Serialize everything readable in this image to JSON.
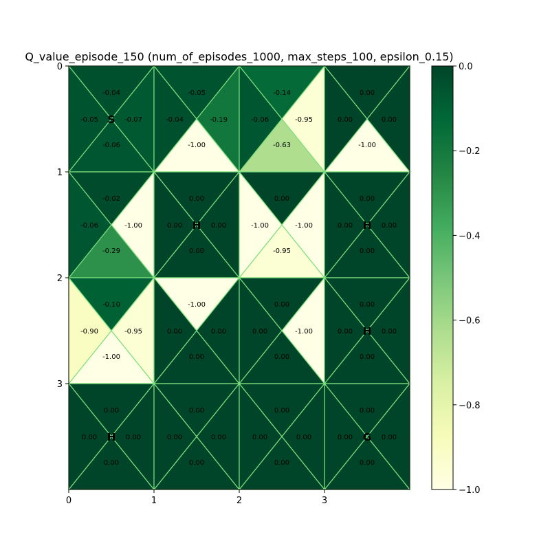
{
  "chart_data": {
    "type": "heatmap",
    "title": "Q_value_episode_150 (num_of_episodes_1000, max_steps_100, epsilon_0.15)",
    "xticks": [
      "0",
      "1",
      "2",
      "3"
    ],
    "yticks": [
      "0",
      "1",
      "2",
      "3"
    ],
    "xlim": [
      0,
      4
    ],
    "ylim": [
      4,
      0
    ],
    "colormap": "YlGn",
    "colorbar": {
      "vmin": -1.0,
      "vmax": 0.0,
      "ticks": [
        "0.0",
        "−0.2",
        "−0.4",
        "−0.6",
        "−0.8",
        "−1.0"
      ],
      "tick_values": [
        0.0,
        -0.2,
        -0.4,
        -0.6,
        -0.8,
        -1.0
      ]
    },
    "grid_line_color": "#7de07d",
    "cells": [
      {
        "row": 0,
        "col": 0,
        "marker": "S",
        "up": "-0.04",
        "left": "-0.05",
        "right": "-0.07",
        "down": "-0.06",
        "up_v": -0.04,
        "left_v": -0.05,
        "right_v": -0.07,
        "down_v": -0.06
      },
      {
        "row": 0,
        "col": 1,
        "marker": "",
        "up": "-0.05",
        "left": "-0.04",
        "right": "-0.19",
        "down": "-1.00",
        "up_v": -0.05,
        "left_v": -0.04,
        "right_v": -0.19,
        "down_v": -1.0
      },
      {
        "row": 0,
        "col": 2,
        "marker": "",
        "up": "-0.14",
        "left": "-0.06",
        "right": "-0.95",
        "down": "-0.63",
        "up_v": -0.14,
        "left_v": -0.06,
        "right_v": -0.95,
        "down_v": -0.63
      },
      {
        "row": 0,
        "col": 3,
        "marker": "",
        "up": "0.00",
        "left": "0.00",
        "right": "0.00",
        "down": "-1.00",
        "up_v": 0.0,
        "left_v": 0.0,
        "right_v": 0.0,
        "down_v": -1.0
      },
      {
        "row": 1,
        "col": 0,
        "marker": "",
        "up": "-0.02",
        "left": "-0.06",
        "right": "-1.00",
        "down": "-0.29",
        "up_v": -0.02,
        "left_v": -0.06,
        "right_v": -1.0,
        "down_v": -0.29
      },
      {
        "row": 1,
        "col": 1,
        "marker": "H",
        "up": "0.00",
        "left": "0.00",
        "right": "0.00",
        "down": "0.00",
        "up_v": 0.0,
        "left_v": 0.0,
        "right_v": 0.0,
        "down_v": 0.0
      },
      {
        "row": 1,
        "col": 2,
        "marker": "",
        "up": "0.00",
        "left": "-1.00",
        "right": "-1.00",
        "down": "-0.95",
        "up_v": 0.0,
        "left_v": -1.0,
        "right_v": -1.0,
        "down_v": -0.95
      },
      {
        "row": 1,
        "col": 3,
        "marker": "H",
        "up": "0.00",
        "left": "0.00",
        "right": "0.00",
        "down": "0.00",
        "up_v": 0.0,
        "left_v": 0.0,
        "right_v": 0.0,
        "down_v": 0.0
      },
      {
        "row": 2,
        "col": 0,
        "marker": "",
        "up": "-0.10",
        "left": "-0.90",
        "right": "-0.95",
        "down": "-1.00",
        "up_v": -0.1,
        "left_v": -0.9,
        "right_v": -0.95,
        "down_v": -1.0
      },
      {
        "row": 2,
        "col": 1,
        "marker": "",
        "up": "-1.00",
        "left": "0.00",
        "right": "0.00",
        "down": "0.00",
        "up_v": -1.0,
        "left_v": 0.0,
        "right_v": 0.0,
        "down_v": 0.0
      },
      {
        "row": 2,
        "col": 2,
        "marker": "",
        "up": "0.00",
        "left": "0.00",
        "right": "-1.00",
        "down": "0.00",
        "up_v": 0.0,
        "left_v": 0.0,
        "right_v": -1.0,
        "down_v": 0.0
      },
      {
        "row": 2,
        "col": 3,
        "marker": "H",
        "up": "0.00",
        "left": "0.00",
        "right": "0.00",
        "down": "0.00",
        "up_v": 0.0,
        "left_v": 0.0,
        "right_v": 0.0,
        "down_v": 0.0
      },
      {
        "row": 3,
        "col": 0,
        "marker": "H",
        "up": "0.00",
        "left": "0.00",
        "right": "0.00",
        "down": "0.00",
        "up_v": 0.0,
        "left_v": 0.0,
        "right_v": 0.0,
        "down_v": 0.0
      },
      {
        "row": 3,
        "col": 1,
        "marker": "",
        "up": "0.00",
        "left": "0.00",
        "right": "0.00",
        "down": "0.00",
        "up_v": 0.0,
        "left_v": 0.0,
        "right_v": 0.0,
        "down_v": 0.0
      },
      {
        "row": 3,
        "col": 2,
        "marker": "",
        "up": "0.00",
        "left": "0.00",
        "right": "0.00",
        "down": "0.00",
        "up_v": 0.0,
        "left_v": 0.0,
        "right_v": 0.0,
        "down_v": 0.0
      },
      {
        "row": 3,
        "col": 3,
        "marker": "G",
        "up": "0.00",
        "left": "0.00",
        "right": "0.00",
        "down": "0.00",
        "up_v": 0.0,
        "left_v": 0.0,
        "right_v": 0.0,
        "down_v": 0.0
      }
    ]
  }
}
